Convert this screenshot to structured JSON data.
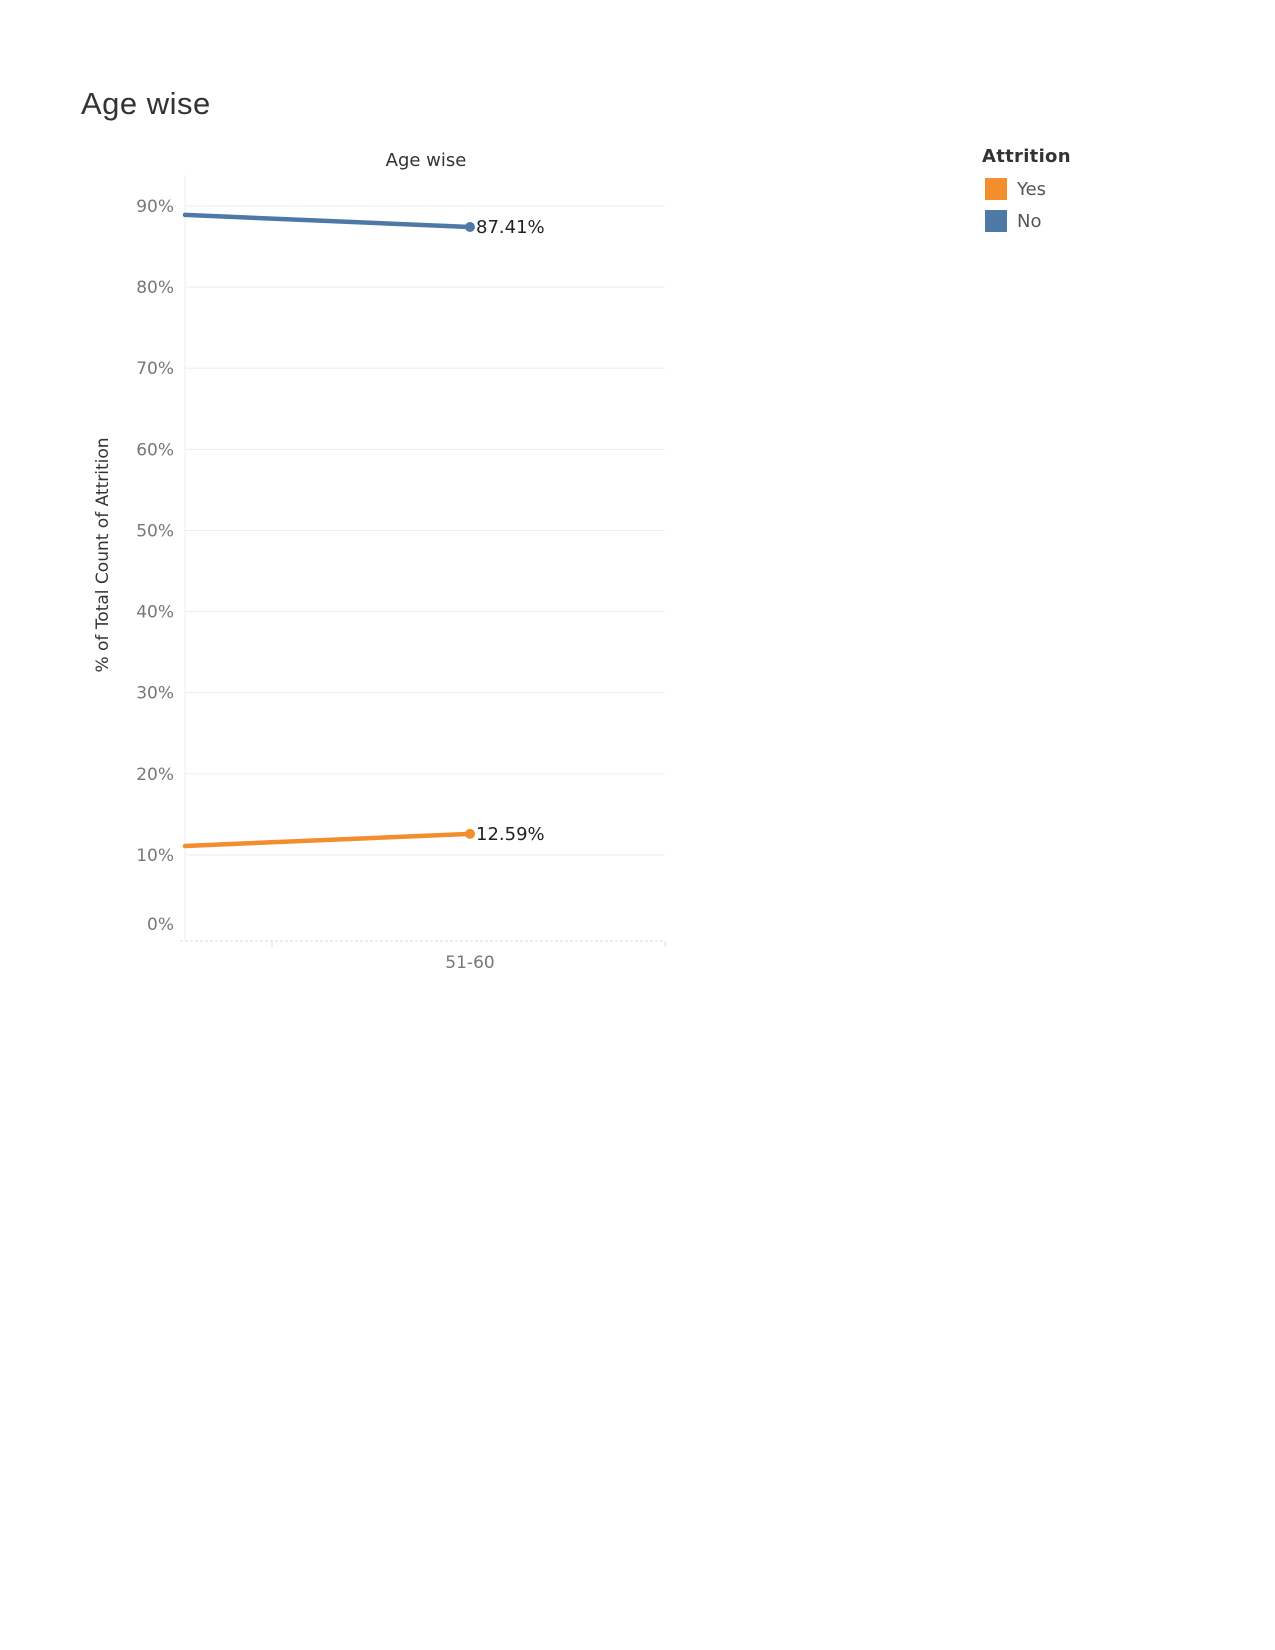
{
  "page": {
    "title": "Age wise"
  },
  "legend": {
    "title": "Attrition",
    "items": [
      {
        "label": "Yes",
        "color": "#f28e2b"
      },
      {
        "label": "No",
        "color": "#4e79a7"
      }
    ]
  },
  "chart_data": {
    "type": "line",
    "title": "Age wise",
    "xlabel": "",
    "ylabel": "% of Total Count of Attrition",
    "y_tick_labels": [
      "0%",
      "10%",
      "20%",
      "30%",
      "40%",
      "50%",
      "60%",
      "70%",
      "80%",
      "90%"
    ],
    "ylim": [
      0,
      90
    ],
    "grid": true,
    "legend_position": "top-right",
    "categories": [
      "",
      "51-60"
    ],
    "series": [
      {
        "name": "Yes",
        "color": "#f28e2b",
        "values": [
          11.1,
          12.59
        ],
        "label": "12.59%"
      },
      {
        "name": "No",
        "color": "#4e79a7",
        "values": [
          88.9,
          87.41
        ],
        "label": "87.41%"
      }
    ]
  }
}
